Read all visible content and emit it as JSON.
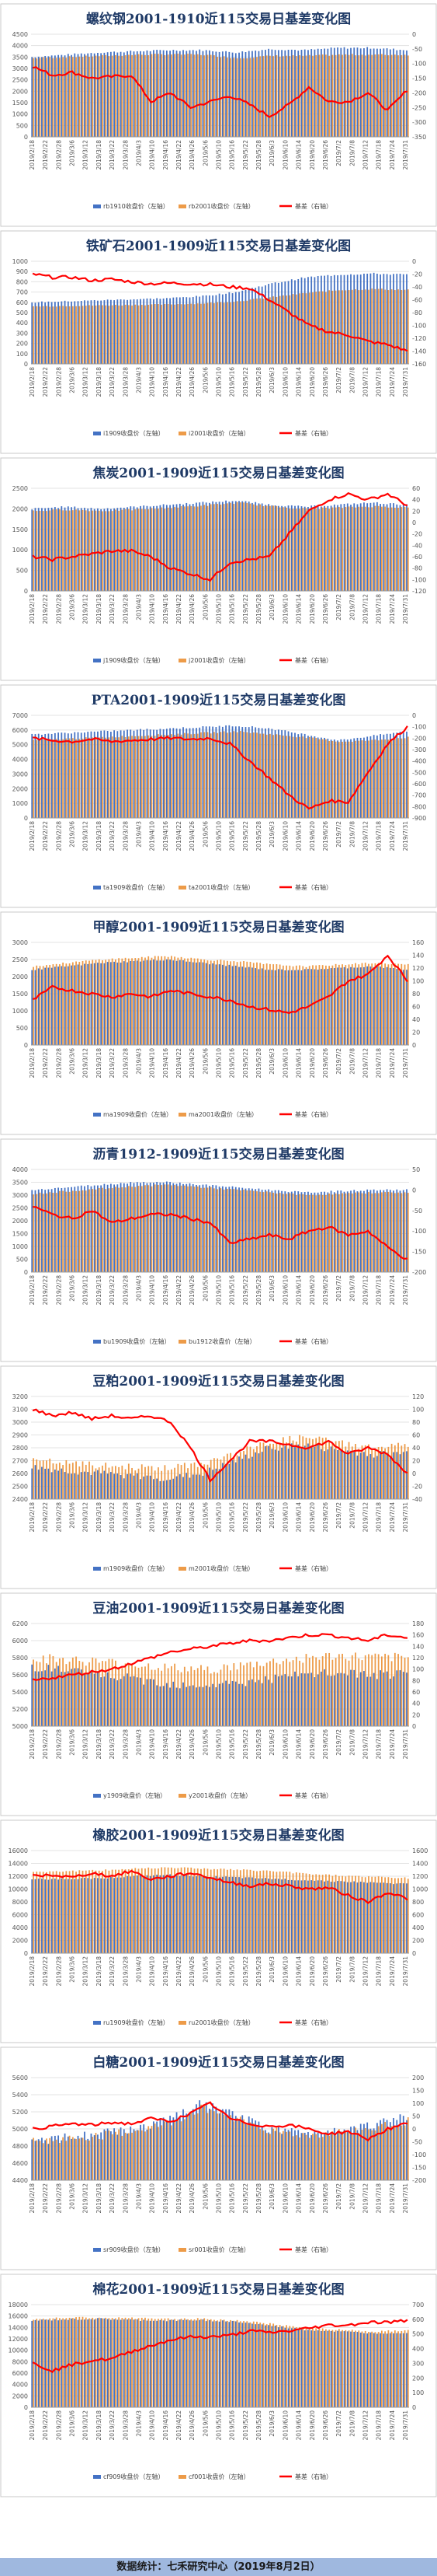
{
  "footer": "数据统计：七禾研究中心（2019年8月2日）",
  "colors": {
    "near": "#4472c4",
    "far": "#ed9b48",
    "basis": "#ff0000",
    "title": "#1f3a66"
  },
  "x_dates": [
    "2019/2/18",
    "2019/2/22",
    "2019/2/28",
    "2019/3/6",
    "2019/3/12",
    "2019/3/18",
    "2019/3/22",
    "2019/3/28",
    "2019/4/3",
    "2019/4/10",
    "2019/4/16",
    "2019/4/22",
    "2019/4/26",
    "2019/5/6",
    "2019/5/10",
    "2019/5/16",
    "2019/5/22",
    "2019/5/28",
    "2019/6/3",
    "2019/6/10",
    "2019/6/14",
    "2019/6/20",
    "2019/6/26",
    "2019/7/2",
    "2019/7/8",
    "2019/7/12",
    "2019/7/18",
    "2019/7/24",
    "2019/7/31"
  ],
  "chart_data": [
    {
      "type": "bar",
      "title": "螺纹钢2001-1910近115交易日基差变化图",
      "legend": [
        "rb1910收盘价（左轴）",
        "rb2001收盘价（左轴）",
        "基差（右轴）"
      ],
      "left_ticks": [
        0,
        500,
        1000,
        1500,
        2000,
        2500,
        3000,
        3500,
        4000,
        4500
      ],
      "right_ticks": [
        -350,
        -300,
        -250,
        -200,
        -150,
        -100,
        -50,
        0
      ],
      "near_profile": [
        3500,
        3600,
        3700,
        3750,
        3800,
        3800,
        3700,
        3850,
        3800,
        3900,
        3900,
        3800
      ],
      "far_profile": [
        3450,
        3500,
        3550,
        3600,
        3620,
        3600,
        3450,
        3550,
        3550,
        3600,
        3600,
        3600
      ],
      "basis_profile": [
        -110,
        -140,
        -130,
        -150,
        -145,
        -140,
        -230,
        -200,
        -250,
        -230,
        -210,
        -240,
        -280,
        -240,
        -180,
        -230,
        -230,
        -200,
        -260,
        -190
      ]
    },
    {
      "type": "bar",
      "title": "铁矿石2001-1909近115交易日基差变化图",
      "legend": [
        "i1909收盘价（左轴）",
        "i2001收盘价（左轴）",
        "基差（右轴）"
      ],
      "left_ticks": [
        0,
        100,
        200,
        300,
        400,
        500,
        600,
        700,
        800,
        900,
        1000
      ],
      "right_ticks": [
        -160,
        -140,
        -120,
        -100,
        -80,
        -60,
        -40,
        -20,
        0
      ],
      "near_profile": [
        600,
        610,
        620,
        630,
        640,
        660,
        700,
        780,
        840,
        870,
        880,
        870
      ],
      "far_profile": [
        560,
        565,
        570,
        575,
        580,
        590,
        610,
        650,
        690,
        720,
        730,
        720
      ],
      "basis_profile": [
        -20,
        -25,
        -25,
        -30,
        -28,
        -32,
        -35,
        -34,
        -35,
        -36,
        -40,
        -42,
        -60,
        -80,
        -100,
        -110,
        -115,
        -125,
        -130,
        -140
      ]
    },
    {
      "type": "bar",
      "title": "焦炭2001-1909近115交易日基差变化图",
      "legend": [
        "j1909收盘价（左轴）",
        "j2001收盘价（左轴）",
        "基差（右轴）"
      ],
      "left_ticks": [
        0,
        500,
        1000,
        1500,
        2000,
        2500
      ],
      "right_ticks": [
        -120,
        -100,
        -80,
        -60,
        -40,
        -20,
        0,
        20,
        40,
        60
      ],
      "near_profile": [
        2000,
        2050,
        2000,
        2050,
        2100,
        2150,
        2200,
        2100,
        2050,
        2100,
        2150,
        2100
      ],
      "far_profile": [
        1950,
        1980,
        1950,
        1980,
        2030,
        2080,
        2150,
        2060,
        2000,
        2030,
        2060,
        2030
      ],
      "basis_profile": [
        -60,
        -65,
        -60,
        -55,
        -50,
        -50,
        -60,
        -80,
        -90,
        -100,
        -70,
        -65,
        -60,
        -20,
        20,
        40,
        50,
        40,
        50,
        30
      ]
    },
    {
      "type": "bar",
      "title": "PTA2001-1909近115交易日基差变化图",
      "legend": [
        "ta1909收盘价（左轴）",
        "ta2001收盘价（左轴）",
        "基差（右轴）"
      ],
      "left_ticks": [
        0,
        1000,
        2000,
        3000,
        4000,
        5000,
        6000,
        7000
      ],
      "right_ticks": [
        -900,
        -800,
        -700,
        -600,
        -500,
        -400,
        -300,
        -200,
        -100,
        0
      ],
      "near_profile": [
        5700,
        5800,
        5900,
        6000,
        6100,
        6200,
        6300,
        6100,
        5700,
        5300,
        5600,
        5900
      ],
      "far_profile": [
        5300,
        5400,
        5500,
        5600,
        5700,
        5800,
        5900,
        5700,
        5500,
        5200,
        5300,
        5500
      ],
      "basis_profile": [
        -200,
        -220,
        -230,
        -210,
        -230,
        -220,
        -210,
        -200,
        -210,
        -200,
        -250,
        -400,
        -550,
        -700,
        -820,
        -750,
        -760,
        -500,
        -250,
        -100
      ]
    },
    {
      "type": "bar",
      "title": "甲醇2001-1909近115交易日基差变化图",
      "legend": [
        "ma1909收盘价（左轴）",
        "ma2001收盘价（左轴）",
        "基差（右轴）"
      ],
      "left_ticks": [
        0,
        500,
        1000,
        1500,
        2000,
        2500,
        3000
      ],
      "right_ticks": [
        0,
        20,
        40,
        60,
        80,
        100,
        120,
        140,
        160
      ],
      "near_profile": [
        2200,
        2300,
        2400,
        2450,
        2500,
        2400,
        2300,
        2200,
        2200,
        2250,
        2300,
        2200
      ],
      "far_profile": [
        2300,
        2400,
        2500,
        2550,
        2600,
        2500,
        2450,
        2350,
        2300,
        2350,
        2400,
        2350
      ],
      "basis_profile": [
        70,
        90,
        85,
        80,
        75,
        80,
        75,
        85,
        80,
        75,
        70,
        60,
        55,
        50,
        60,
        75,
        100,
        110,
        140,
        100
      ]
    },
    {
      "type": "bar",
      "title": "沥青1912-1909近115交易日基差变化图",
      "legend": [
        "bu1909收盘价（左轴）",
        "bu1912收盘价（左轴）",
        "基差（右轴）"
      ],
      "left_ticks": [
        0,
        500,
        1000,
        1500,
        2000,
        2500,
        3000,
        3500,
        4000
      ],
      "right_ticks": [
        -200,
        -150,
        -100,
        -50,
        0,
        50
      ],
      "near_profile": [
        3200,
        3300,
        3400,
        3500,
        3500,
        3400,
        3300,
        3200,
        3100,
        3150,
        3200,
        3200
      ],
      "far_profile": [
        3050,
        3150,
        3250,
        3350,
        3400,
        3300,
        3200,
        3100,
        3000,
        3050,
        3100,
        3100
      ],
      "basis_profile": [
        -40,
        -60,
        -70,
        -50,
        -80,
        -70,
        -60,
        -60,
        -70,
        -80,
        -130,
        -120,
        -110,
        -120,
        -100,
        -90,
        -110,
        -100,
        -140,
        -170
      ]
    },
    {
      "type": "bar",
      "title": "豆粕2001-1909近115交易日基差变化图",
      "legend": [
        "m1909收盘价（左轴）",
        "m2001收盘价（左轴）",
        "基差（右轴）"
      ],
      "left_ticks": [
        2400,
        2500,
        2600,
        2700,
        2800,
        2900,
        3000,
        3100,
        3200
      ],
      "right_ticks": [
        -40,
        -20,
        0,
        20,
        40,
        60,
        80,
        100,
        120
      ],
      "near_profile": [
        2650,
        2620,
        2600,
        2580,
        2560,
        2600,
        2700,
        2800,
        2820,
        2780,
        2750,
        2760
      ],
      "far_profile": [
        2700,
        2680,
        2660,
        2650,
        2640,
        2680,
        2760,
        2850,
        2880,
        2840,
        2800,
        2820
      ],
      "basis_profile": [
        100,
        90,
        95,
        85,
        90,
        85,
        90,
        80,
        40,
        -10,
        20,
        50,
        50,
        45,
        40,
        50,
        30,
        40,
        30,
        0
      ]
    },
    {
      "type": "bar",
      "title": "豆油2001-1909近115交易日基差变化图",
      "legend": [
        "y1909收盘价（左轴）",
        "y2001收盘价（左轴）",
        "基差（右轴）"
      ],
      "left_ticks": [
        5000,
        5200,
        5400,
        5600,
        5800,
        6000,
        6200
      ],
      "right_ticks": [
        0,
        20,
        40,
        60,
        80,
        100,
        120,
        140,
        160,
        180
      ],
      "near_profile": [
        5700,
        5650,
        5600,
        5550,
        5500,
        5480,
        5500,
        5550,
        5600,
        5620,
        5600,
        5600
      ],
      "far_profile": [
        5800,
        5780,
        5750,
        5720,
        5680,
        5660,
        5700,
        5750,
        5800,
        5820,
        5800,
        5800
      ],
      "basis_profile": [
        80,
        85,
        90,
        95,
        100,
        110,
        120,
        130,
        135,
        140,
        145,
        150,
        150,
        155,
        160,
        160,
        155,
        150,
        160,
        155
      ]
    },
    {
      "type": "bar",
      "title": "橡胶2001-1909近115交易日基差变化图",
      "legend": [
        "ru1909收盘价（左轴）",
        "ru2001收盘价（左轴）",
        "基差（右轴）"
      ],
      "left_ticks": [
        0,
        2000,
        4000,
        6000,
        8000,
        10000,
        12000,
        14000,
        16000
      ],
      "right_ticks": [
        0,
        200,
        400,
        600,
        800,
        1000,
        1200,
        1400,
        1600
      ],
      "near_profile": [
        11500,
        11600,
        11700,
        12000,
        12200,
        12000,
        11800,
        11600,
        11400,
        11200,
        11000,
        10800
      ],
      "far_profile": [
        12700,
        12800,
        12900,
        13200,
        13400,
        13200,
        13000,
        12800,
        12400,
        12100,
        11900,
        11700
      ],
      "basis_profile": [
        1200,
        1220,
        1180,
        1250,
        1200,
        1280,
        1150,
        1200,
        1250,
        1180,
        1100,
        1050,
        1080,
        1050,
        1000,
        1020,
        900,
        800,
        950,
        850
      ]
    },
    {
      "type": "bar",
      "title": "白糖2001-1909近115交易日基差变化图",
      "legend": [
        "sr909收盘价（左轴）",
        "sr001收盘价（左轴）",
        "基差（右轴）"
      ],
      "left_ticks": [
        4400,
        4600,
        4800,
        5000,
        5200,
        5400,
        5600
      ],
      "right_ticks": [
        -200,
        -150,
        -100,
        -50,
        0,
        50,
        100,
        150,
        200
      ],
      "near_profile": [
        4850,
        4900,
        4950,
        5000,
        5100,
        5300,
        5150,
        5000,
        4950,
        5000,
        5050,
        5150
      ],
      "far_profile": [
        4850,
        4880,
        4920,
        4980,
        5060,
        5250,
        5120,
        4980,
        4920,
        4960,
        5000,
        5100
      ],
      "basis_profile": [
        0,
        10,
        20,
        15,
        25,
        20,
        40,
        30,
        60,
        100,
        40,
        20,
        10,
        15,
        0,
        -20,
        -10,
        -40,
        0,
        20
      ]
    },
    {
      "type": "bar",
      "title": "棉花2001-1909近115交易日基差变化图",
      "legend": [
        "cf909收盘价（左轴）",
        "cf001收盘价（左轴）",
        "基差（右轴）"
      ],
      "left_ticks": [
        0,
        2000,
        4000,
        6000,
        8000,
        10000,
        12000,
        14000,
        16000,
        18000
      ],
      "right_ticks": [
        0,
        100,
        200,
        300,
        400,
        500,
        600,
        700
      ],
      "near_profile": [
        15200,
        15400,
        15500,
        15300,
        15200,
        15300,
        15000,
        14300,
        13600,
        13300,
        13000,
        13100
      ],
      "far_profile": [
        15500,
        15700,
        15700,
        15600,
        15500,
        15500,
        15200,
        14600,
        13900,
        13600,
        13300,
        13500
      ],
      "basis_profile": [
        300,
        250,
        290,
        320,
        330,
        380,
        420,
        460,
        480,
        480,
        490,
        520,
        510,
        520,
        540,
        560,
        560,
        580,
        580,
        590
      ]
    }
  ]
}
